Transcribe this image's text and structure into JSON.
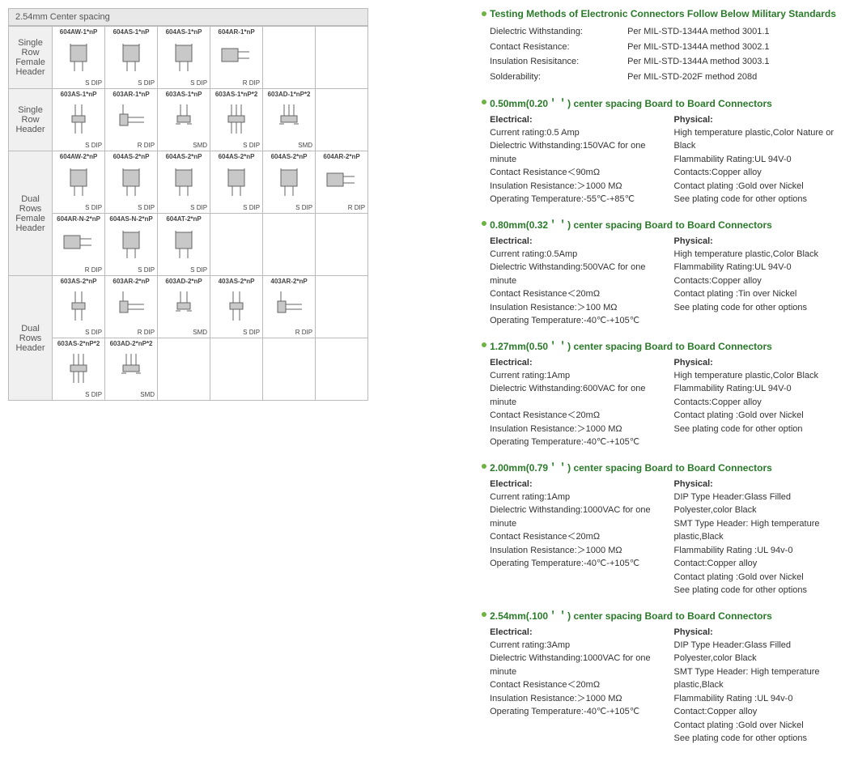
{
  "left": {
    "title": "2.54mm Center spacing",
    "rows": [
      {
        "label": "Single Row\nFemale Header",
        "cells": [
          {
            "part": "604AW-1*nP",
            "pkg": "S DIP",
            "svg": "fh"
          },
          {
            "part": "604AS-1*nP",
            "pkg": "S DIP",
            "svg": "fh"
          },
          {
            "part": "604AS-1*nP",
            "pkg": "S DIP",
            "svg": "fh"
          },
          {
            "part": "604AR-1*nP",
            "pkg": "R DIP",
            "svg": "fhr"
          },
          null,
          null
        ]
      },
      {
        "label": "Single Row\nHeader",
        "cells": [
          {
            "part": "603AS-1*nP",
            "pkg": "S DIP",
            "svg": "h"
          },
          {
            "part": "603AR-1*nP",
            "pkg": "R DIP",
            "svg": "hr"
          },
          {
            "part": "603AS-1*nP",
            "pkg": "SMD",
            "svg": "hs"
          },
          {
            "part": "603AS-1*nP*2",
            "pkg": "S DIP",
            "svg": "h2"
          },
          {
            "part": "603AD-1*nP*2",
            "pkg": "SMD",
            "svg": "h2s"
          },
          null
        ]
      },
      {
        "label": "Dual Rows\nFemale Header",
        "cells": [
          {
            "part": "604AW-2*nP",
            "pkg": "S DIP",
            "svg": "fh"
          },
          {
            "part": "604AS-2*nP",
            "pkg": "S DIP",
            "svg": "fh"
          },
          {
            "part": "604AS-2*nP",
            "pkg": "S DIP",
            "svg": "fh"
          },
          {
            "part": "604AS-2*nP",
            "pkg": "S DIP",
            "svg": "fh"
          },
          {
            "part": "604AS-2*nP",
            "pkg": "S DIP",
            "svg": "fh"
          },
          {
            "part": "604AR-2*nP",
            "pkg": "R DIP",
            "svg": "fhr"
          }
        ]
      },
      {
        "label": null,
        "cells": [
          {
            "part": "604AR-N-2*nP",
            "pkg": "R DIP",
            "svg": "fhr"
          },
          {
            "part": "604AS-N-2*nP",
            "pkg": "S DIP",
            "svg": "fh"
          },
          {
            "part": "604AT-2*nP",
            "pkg": "S DIP",
            "svg": "fh"
          },
          null,
          null,
          null
        ]
      },
      {
        "label": "Dual Rows\nHeader",
        "cells": [
          {
            "part": "603AS-2*nP",
            "pkg": "S DIP",
            "svg": "h"
          },
          {
            "part": "603AR-2*nP",
            "pkg": "R DIP",
            "svg": "hr"
          },
          {
            "part": "603AD-2*nP",
            "pkg": "SMD",
            "svg": "hs"
          },
          {
            "part": "403AS-2*nP",
            "pkg": "S DIP",
            "svg": "h"
          },
          {
            "part": "403AR-2*nP",
            "pkg": "R DIP",
            "svg": "hr"
          },
          null
        ]
      },
      {
        "label": null,
        "cells": [
          {
            "part": "603AS-2*nP*2",
            "pkg": "S DIP",
            "svg": "h2"
          },
          {
            "part": "603AD-2*nP*2",
            "pkg": "SMD",
            "svg": "h2s"
          },
          null,
          null,
          null,
          null
        ]
      }
    ],
    "svgs": {
      "fh": "<rect x='14' y='6' width='20' height='20' fill='#c8c8c8' stroke='#666'/><line x1='19' y1='26' x2='19' y2='38' stroke='#666'/><line x1='29' y1='26' x2='29' y2='38' stroke='#666'/><line x1='14' y1='8' x2='14' y2='4' stroke='#666'/><line x1='34' y1='8' x2='34' y2='4' stroke='#666'/>",
      "fhr": "<rect x='6' y='10' width='20' height='16' fill='#c8c8c8' stroke='#666'/><line x1='26' y1='14' x2='40' y2='14' stroke='#666'/><line x1='26' y1='22' x2='40' y2='22' stroke='#666'/>",
      "h": "<rect x='16' y='16' width='16' height='8' fill='#c8c8c8' stroke='#666'/><line x1='20' y1='2' x2='20' y2='16' stroke='#666'/><line x1='28' y1='2' x2='28' y2='16' stroke='#666'/><line x1='20' y1='24' x2='20' y2='38' stroke='#666'/><line x1='28' y1='24' x2='28' y2='38' stroke='#666'/>",
      "hr": "<rect x='10' y='14' width='10' height='14' fill='#c8c8c8' stroke='#666'/><line x1='14' y1='2' x2='14' y2='14' stroke='#666'/><line x1='20' y1='18' x2='40' y2='18' stroke='#666'/><line x1='20' y1='24' x2='40' y2='24' stroke='#666'/>",
      "hs": "<rect x='16' y='16' width='16' height='8' fill='#c8c8c8' stroke='#666'/><line x1='20' y1='2' x2='20' y2='16' stroke='#666'/><line x1='28' y1='2' x2='28' y2='16' stroke='#666'/><line x1='14' y1='26' x2='20' y2='26' stroke='#666'/><line x1='28' y1='26' x2='34' y2='26' stroke='#666'/>",
      "h2": "<rect x='14' y='16' width='20' height='8' fill='#c8c8c8' stroke='#666'/><line x1='18' y1='2' x2='18' y2='16' stroke='#666'/><line x1='24' y1='2' x2='24' y2='16' stroke='#666'/><line x1='30' y1='2' x2='30' y2='16' stroke='#666'/><line x1='18' y1='24' x2='18' y2='38' stroke='#666'/><line x1='24' y1='24' x2='24' y2='38' stroke='#666'/><line x1='30' y1='24' x2='30' y2='38' stroke='#666'/>",
      "h2s": "<rect x='14' y='16' width='20' height='8' fill='#c8c8c8' stroke='#666'/><line x1='18' y1='2' x2='18' y2='16' stroke='#666'/><line x1='24' y1='2' x2='24' y2='16' stroke='#666'/><line x1='30' y1='2' x2='30' y2='16' stroke='#666'/><line x1='12' y1='26' x2='18' y2='26' stroke='#666'/><line x1='30' y1='26' x2='36' y2='26' stroke='#666'/>"
    }
  },
  "right": {
    "intro": {
      "title": "Testing Methods of Electronic Connectors Follow Below Military Standards",
      "rows": [
        {
          "k": "Dielectric Withstanding:",
          "v": "Per MIL-STD-1344A method 3001.1"
        },
        {
          "k": "Contact  Resistance:",
          "v": "Per MIL-STD-1344A method 3002.1"
        },
        {
          "k": "Insulation Resisitance:",
          "v": "Per MIL-STD-1344A method 3003.1"
        },
        {
          "k": "Solderability:",
          "v": "Per MIL-STD-202F method 208d"
        }
      ]
    },
    "sections": [
      {
        "title": "0.50mm(0.20＇＇) center spacing Board to Board Connectors",
        "elec": [
          "Current rating:0.5 Amp",
          "Dielectric Withstanding:150VAC for one minute",
          "Contact Resistance＜90mΩ",
          "Insulation Resistance:＞1000 MΩ",
          "Operating  Temperature:-55℃-+85℃"
        ],
        "phys": [
          "High temperature plastic,Color Nature or Black",
          "Flammability Rating:UL 94V-0",
          "Contacts:Copper alloy",
          "Contact plating :Gold over Nickel",
          "See plating code for other options"
        ]
      },
      {
        "title": "0.80mm(0.32＇＇) center spacing Board to Board Connectors",
        "elec": [
          "Current rating:0.5Amp",
          "Dielectric Withstanding:500VAC for one minute",
          "Contact Resistance＜20mΩ",
          "Insulation Resistance:＞100 MΩ",
          "Operating  Temperature:-40℃-+105℃"
        ],
        "phys": [
          "High temperature plastic,Color Black",
          "Flammability Rating:UL 94V-0",
          "Contacts:Copper alloy",
          "Contact plating :Tin over Nickel",
          "See plating code for other options"
        ]
      },
      {
        "title": "1.27mm(0.50＇＇) center spacing Board to Board Connectors",
        "elec": [
          "Current rating:1Amp",
          "Dielectric Withstanding:600VAC for one minute",
          "Contact Resistance＜20mΩ",
          "Insulation Resistance:＞1000 MΩ",
          "Operating  Temperature:-40℃-+105℃"
        ],
        "phys": [
          "High temperature plastic,Color Black",
          "Flammability Rating:UL 94V-0",
          "Contacts:Copper alloy",
          "Contact plating :Gold  over Nickel",
          "See plating code for other option"
        ]
      },
      {
        "title": "2.00mm(0.79＇＇) center spacing Board to Board Connectors",
        "elec": [
          "Current rating:1Amp",
          "Dielectric Withstanding:1000VAC for one minute",
          "Contact Resistance＜20mΩ",
          "Insulation Resistance:＞1000 MΩ",
          "Operating  Temperature:-40℃-+105℃"
        ],
        "phys": [
          "DIP Type Header:Glass Filled Polyester,color Black",
          "SMT Type Header: High temperature plastic,Black",
          "Flammability Rating :UL 94v-0",
          "Contact:Copper alloy",
          "Contact plating :Gold over Nickel",
          "See plating code for other options"
        ]
      },
      {
        "title": "2.54mm(.100＇＇) center spacing Board to Board Connectors",
        "elec": [
          "Current rating:3Amp",
          "Dielectric Withstanding:1000VAC for one minute",
          "Contact Resistance＜20mΩ",
          "Insulation Resistance:＞1000 MΩ",
          "Operating  Temperature:-40℃-+105℃"
        ],
        "phys": [
          "DIP Type Header:Glass Filled Polyester,color Black",
          "SMT Type Header: High temperature plastic,Black",
          "Flammability Rating :UL 94v-0",
          "Contact:Copper alloy",
          "Contact plating :Gold over Nickel",
          "See plating code for other options"
        ]
      }
    ],
    "elec_label": "Electrical:",
    "phys_label": "Physical:"
  }
}
